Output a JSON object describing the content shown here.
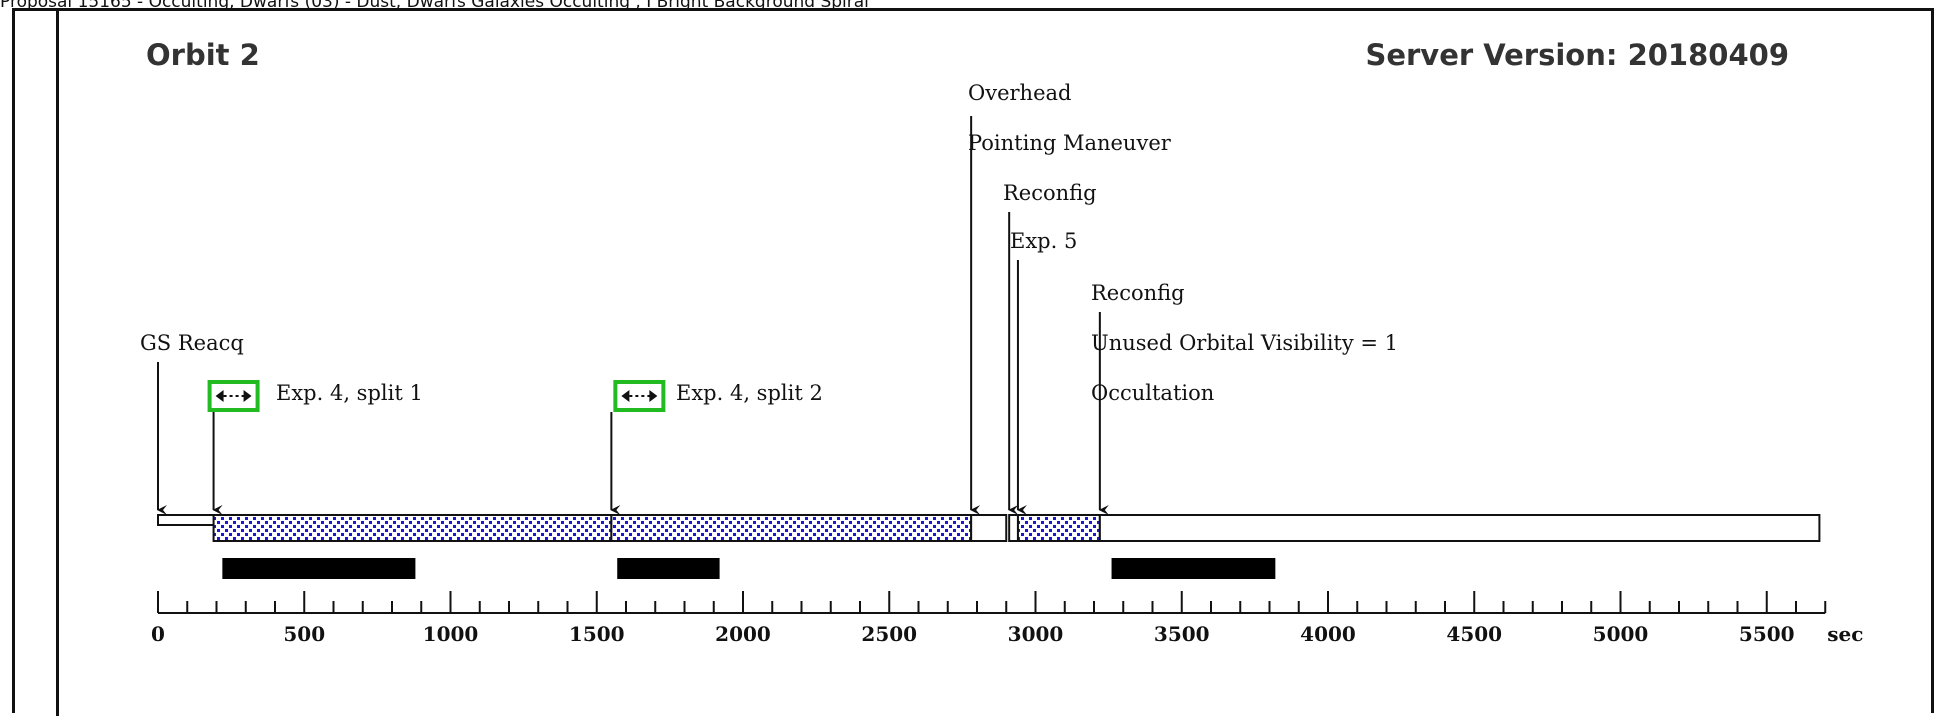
{
  "header": {
    "text": "Proposal 15165 - Occulting, Dwarfs (03) - Dust, Dwarfs Galaxies Occulting , I Bright Background Spiral"
  },
  "title": "Orbit 2",
  "server_version": "Server Version: 20180409",
  "axis": {
    "min": 0,
    "max": 5700,
    "unit": "sec",
    "ticks": [
      0,
      500,
      1000,
      1500,
      2000,
      2500,
      3000,
      3500,
      4000,
      4500,
      5000,
      5500
    ],
    "minor_step": 100
  },
  "events": [
    {
      "label": "GS Reacq",
      "t": 0
    },
    {
      "label": "Exp. 4, split 1",
      "t": 190
    },
    {
      "label": "Exp. 4, split 2",
      "t": 1550
    },
    {
      "label": "Overhead",
      "t": 2780
    },
    {
      "label": "Pointing Maneuver",
      "t": 2780
    },
    {
      "label": "Reconfig",
      "t": 2910
    },
    {
      "label": "Exp. 5",
      "t": 2940
    },
    {
      "label": "Reconfig",
      "t": 3220
    },
    {
      "label": "Unused Orbital Visibility = 1",
      "t": 3220
    },
    {
      "label": "Occultation",
      "t": 3220
    }
  ],
  "segments": [
    {
      "name": "gs-reacq",
      "start": 0,
      "end": 210,
      "fill": "white"
    },
    {
      "name": "exposure-4-split-1",
      "start": 190,
      "end": 1550,
      "fill": "dots"
    },
    {
      "name": "exposure-4-split-2",
      "start": 1550,
      "end": 2780,
      "fill": "dots"
    },
    {
      "name": "overhead",
      "start": 2780,
      "end": 2900,
      "fill": "white"
    },
    {
      "name": "reconfig",
      "start": 2910,
      "end": 2940,
      "fill": "white"
    },
    {
      "name": "exposure-5",
      "start": 2940,
      "end": 3220,
      "fill": "dots"
    },
    {
      "name": "unused-visibility",
      "start": 3220,
      "end": 5680,
      "fill": "white"
    }
  ],
  "black_bars": [
    {
      "start": 220,
      "end": 880
    },
    {
      "start": 1570,
      "end": 1920
    },
    {
      "start": 3260,
      "end": 3820
    }
  ],
  "colors": {
    "dots": "#1a1acc",
    "split_box": "#22bb22"
  }
}
